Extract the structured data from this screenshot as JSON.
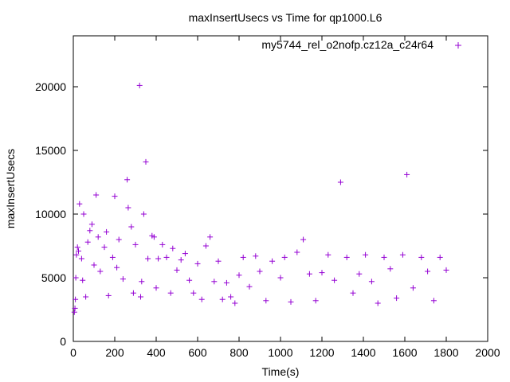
{
  "chart_data": {
    "type": "scatter",
    "title": "maxInsertUsecs vs Time for qp1000.L6",
    "xlabel": "Time(s)",
    "ylabel": "maxInsertUsecs",
    "xlim": [
      0,
      2000
    ],
    "ylim": [
      0,
      24000
    ],
    "x_ticks": [
      "0",
      "200",
      "400",
      "600",
      "800",
      "1000",
      "1200",
      "1400",
      "1600",
      "1800",
      "2000"
    ],
    "y_ticks": [
      "0",
      "5000",
      "10000",
      "15000",
      "20000"
    ],
    "grid": false,
    "legend_position": "top-right",
    "series": [
      {
        "name": "my5744_rel_o2nofp.cz12a_c24r64",
        "color": "#9400d3",
        "marker": "plus",
        "points": [
          [
            5,
            2300
          ],
          [
            8,
            2600
          ],
          [
            10,
            3300
          ],
          [
            12,
            5000
          ],
          [
            15,
            6800
          ],
          [
            20,
            7400
          ],
          [
            25,
            7100
          ],
          [
            30,
            10800
          ],
          [
            40,
            6500
          ],
          [
            45,
            4800
          ],
          [
            50,
            10000
          ],
          [
            60,
            3500
          ],
          [
            70,
            7800
          ],
          [
            80,
            8700
          ],
          [
            90,
            9200
          ],
          [
            100,
            6000
          ],
          [
            110,
            11500
          ],
          [
            120,
            8200
          ],
          [
            130,
            5500
          ],
          [
            150,
            7400
          ],
          [
            160,
            8600
          ],
          [
            170,
            3600
          ],
          [
            190,
            6600
          ],
          [
            200,
            11400
          ],
          [
            210,
            5800
          ],
          [
            220,
            8000
          ],
          [
            240,
            4900
          ],
          [
            260,
            12700
          ],
          [
            265,
            10500
          ],
          [
            280,
            9000
          ],
          [
            290,
            3800
          ],
          [
            300,
            7600
          ],
          [
            320,
            20100
          ],
          [
            325,
            3500
          ],
          [
            330,
            4700
          ],
          [
            340,
            10000
          ],
          [
            350,
            14100
          ],
          [
            360,
            6500
          ],
          [
            380,
            8300
          ],
          [
            390,
            8200
          ],
          [
            400,
            4200
          ],
          [
            410,
            6500
          ],
          [
            430,
            7600
          ],
          [
            450,
            6600
          ],
          [
            470,
            3800
          ],
          [
            480,
            7300
          ],
          [
            500,
            5600
          ],
          [
            520,
            6400
          ],
          [
            540,
            6900
          ],
          [
            560,
            4800
          ],
          [
            580,
            3800
          ],
          [
            600,
            6100
          ],
          [
            620,
            3300
          ],
          [
            640,
            7500
          ],
          [
            660,
            8200
          ],
          [
            680,
            4700
          ],
          [
            700,
            6300
          ],
          [
            720,
            3300
          ],
          [
            740,
            4600
          ],
          [
            760,
            3500
          ],
          [
            780,
            3000
          ],
          [
            800,
            5200
          ],
          [
            820,
            6600
          ],
          [
            850,
            4300
          ],
          [
            880,
            6700
          ],
          [
            900,
            5500
          ],
          [
            930,
            3200
          ],
          [
            960,
            6300
          ],
          [
            1000,
            5000
          ],
          [
            1020,
            6600
          ],
          [
            1050,
            3100
          ],
          [
            1080,
            7000
          ],
          [
            1110,
            8000
          ],
          [
            1140,
            5300
          ],
          [
            1170,
            3200
          ],
          [
            1200,
            5400
          ],
          [
            1230,
            6800
          ],
          [
            1260,
            4800
          ],
          [
            1290,
            12500
          ],
          [
            1320,
            6600
          ],
          [
            1350,
            3800
          ],
          [
            1380,
            5300
          ],
          [
            1410,
            6800
          ],
          [
            1440,
            4700
          ],
          [
            1470,
            3000
          ],
          [
            1500,
            6600
          ],
          [
            1530,
            5700
          ],
          [
            1560,
            3400
          ],
          [
            1590,
            6800
          ],
          [
            1610,
            13100
          ],
          [
            1640,
            4200
          ],
          [
            1680,
            6600
          ],
          [
            1710,
            5500
          ],
          [
            1740,
            3200
          ],
          [
            1770,
            6600
          ],
          [
            1800,
            5600
          ]
        ]
      }
    ]
  }
}
